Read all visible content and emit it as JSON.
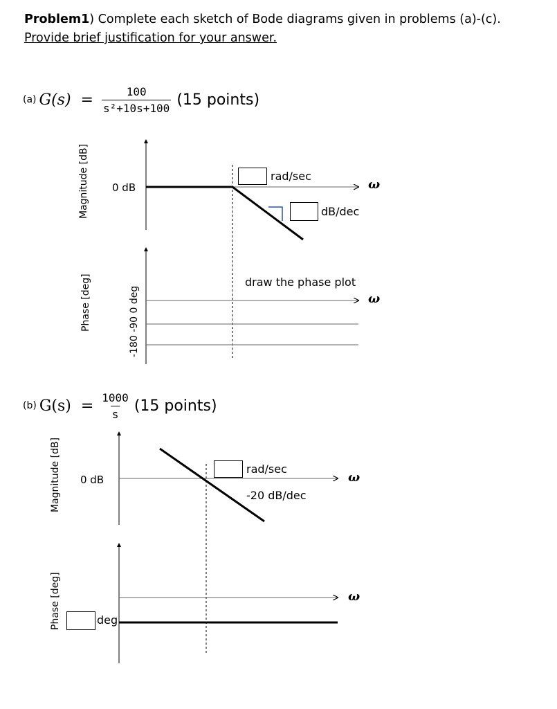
{
  "header": {
    "problem_label": "Problem1",
    "line1_rest": ") Complete each sketch of Bode diagrams given in problems (a)-(c).",
    "line2": "Provide brief justification for your answer."
  },
  "part_a": {
    "label": "(a)",
    "lhs": "G(s)",
    "eq": "=",
    "numerator": "100",
    "denominator": "s²+10s+100",
    "points": "(15 points)",
    "mag_ylabel": "Magnitude [dB]",
    "zero_db": "0 dB",
    "corner_unit": "rad/sec",
    "slope_unit": "dB/dec",
    "omega": "ω",
    "phase_ylabel": "Phase [deg]",
    "phase_ticks": "-180  -90   0 deg",
    "phase_instruction": "draw the phase plot"
  },
  "part_b": {
    "label": "(b)",
    "lhs": "G(s)",
    "eq": "=",
    "numerator": "1000",
    "denominator": "s",
    "points": "(15 points)",
    "mag_ylabel": "Magnitude [dB]",
    "zero_db": "0 dB",
    "corner_unit": "rad/sec",
    "slope": "-20 dB/dec",
    "omega": "ω",
    "phase_ylabel": "Phase [deg]",
    "phase_unit": "deg"
  }
}
